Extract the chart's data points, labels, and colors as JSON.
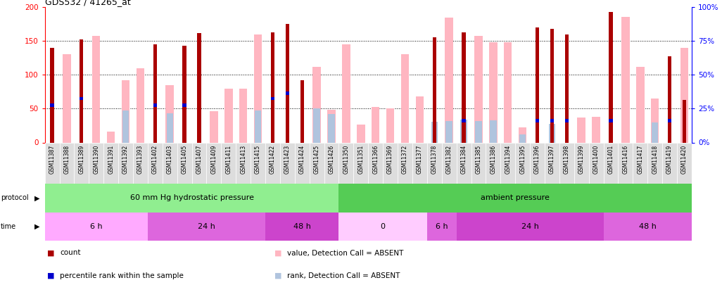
{
  "title": "GDS532 / 41265_at",
  "samples": [
    "GSM11387",
    "GSM11388",
    "GSM11389",
    "GSM11390",
    "GSM11391",
    "GSM11392",
    "GSM11393",
    "GSM11402",
    "GSM11403",
    "GSM11405",
    "GSM11407",
    "GSM11409",
    "GSM11411",
    "GSM11413",
    "GSM11415",
    "GSM11422",
    "GSM11423",
    "GSM11424",
    "GSM11425",
    "GSM11426",
    "GSM11350",
    "GSM11351",
    "GSM11366",
    "GSM11369",
    "GSM11372",
    "GSM11377",
    "GSM11378",
    "GSM11382",
    "GSM11384",
    "GSM11385",
    "GSM11386",
    "GSM11394",
    "GSM11395",
    "GSM11396",
    "GSM11397",
    "GSM11398",
    "GSM11399",
    "GSM11400",
    "GSM11401",
    "GSM11416",
    "GSM11417",
    "GSM11418",
    "GSM11419",
    "GSM11420"
  ],
  "count": [
    140,
    0,
    152,
    0,
    0,
    0,
    0,
    145,
    0,
    143,
    162,
    0,
    0,
    0,
    0,
    163,
    175,
    92,
    0,
    0,
    0,
    0,
    0,
    0,
    0,
    0,
    155,
    0,
    163,
    0,
    0,
    0,
    0,
    170,
    168,
    160,
    0,
    0,
    193,
    0,
    0,
    0,
    127,
    63
  ],
  "rank": [
    55,
    0,
    65,
    0,
    0,
    0,
    0,
    55,
    0,
    55,
    0,
    0,
    0,
    0,
    0,
    65,
    73,
    0,
    0,
    0,
    0,
    0,
    0,
    0,
    0,
    0,
    0,
    32,
    32,
    0,
    0,
    0,
    0,
    32,
    32,
    32,
    0,
    0,
    32,
    0,
    0,
    0,
    32,
    0
  ],
  "value_absent": [
    0,
    130,
    0,
    158,
    16,
    92,
    110,
    0,
    85,
    0,
    0,
    46,
    80,
    80,
    160,
    0,
    0,
    0,
    112,
    48,
    145,
    27,
    52,
    50,
    130,
    68,
    0,
    185,
    0,
    158,
    148,
    148,
    22,
    0,
    0,
    0,
    37,
    38,
    0,
    186,
    112,
    65,
    0,
    140
  ],
  "rank_absent": [
    0,
    0,
    0,
    0,
    0,
    47,
    0,
    0,
    43,
    0,
    0,
    0,
    0,
    0,
    47,
    0,
    0,
    0,
    50,
    42,
    0,
    0,
    0,
    0,
    0,
    0,
    31,
    32,
    34,
    32,
    33,
    0,
    12,
    0,
    28,
    0,
    0,
    0,
    0,
    0,
    0,
    30,
    0,
    0
  ],
  "protocol_groups": [
    {
      "label": "60 mm Hg hydrostatic pressure",
      "start": 0,
      "end": 20,
      "color": "#90EE90"
    },
    {
      "label": "ambient pressure",
      "start": 20,
      "end": 44,
      "color": "#55CC55"
    }
  ],
  "time_groups": [
    {
      "label": "6 h",
      "start": 0,
      "end": 7,
      "color": "#FFAAFF"
    },
    {
      "label": "24 h",
      "start": 7,
      "end": 15,
      "color": "#DD66DD"
    },
    {
      "label": "48 h",
      "start": 15,
      "end": 20,
      "color": "#CC44CC"
    },
    {
      "label": "0",
      "start": 20,
      "end": 26,
      "color": "#FFCCFF"
    },
    {
      "label": "6 h",
      "start": 26,
      "end": 28,
      "color": "#DD66DD"
    },
    {
      "label": "24 h",
      "start": 28,
      "end": 38,
      "color": "#CC44CC"
    },
    {
      "label": "48 h",
      "start": 38,
      "end": 44,
      "color": "#DD66DD"
    }
  ],
  "ylim_left": [
    0,
    200
  ],
  "ylim_right": [
    0,
    100
  ],
  "yticks_left": [
    0,
    50,
    100,
    150,
    200
  ],
  "yticks_right": [
    0,
    25,
    50,
    75,
    100
  ],
  "ytick_labels_right": [
    "0%",
    "25%",
    "50%",
    "75%",
    "100%"
  ],
  "color_count": "#AA0000",
  "color_rank": "#0000CC",
  "color_value_absent": "#FFB6C1",
  "color_rank_absent": "#B0C4DE",
  "legend_items": [
    {
      "color": "#AA0000",
      "label": "count"
    },
    {
      "color": "#0000CC",
      "label": "percentile rank within the sample"
    },
    {
      "color": "#FFB6C1",
      "label": "value, Detection Call = ABSENT"
    },
    {
      "color": "#B0C4DE",
      "label": "rank, Detection Call = ABSENT"
    }
  ]
}
